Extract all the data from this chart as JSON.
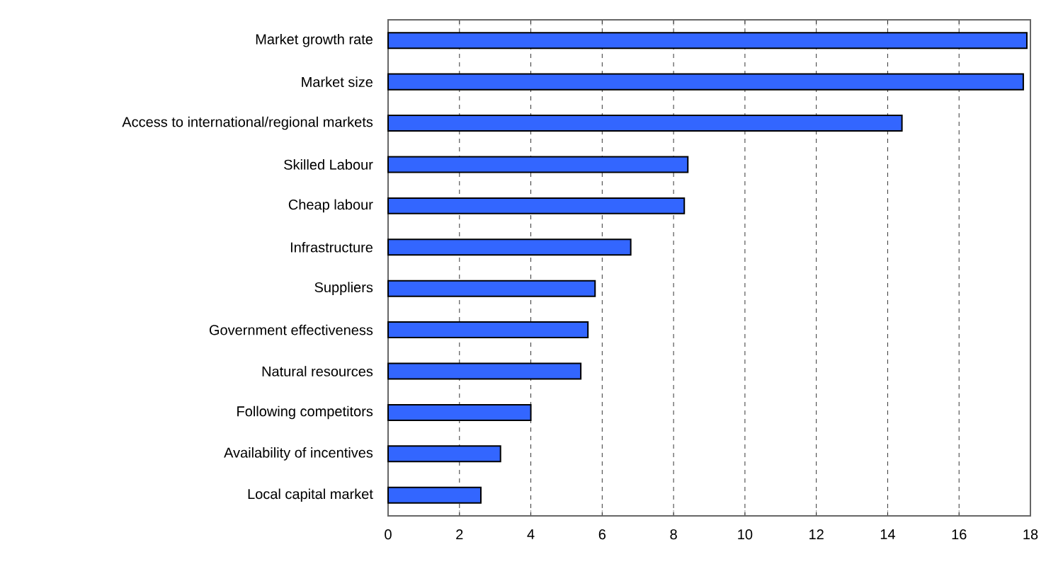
{
  "chart_data": {
    "type": "bar",
    "orientation": "horizontal",
    "categories": [
      "Market growth rate",
      "Market size",
      "Access to international/regional markets",
      "Skilled Labour",
      "Cheap labour",
      "Infrastructure",
      "Suppliers",
      "Government effectiveness",
      "Natural resources",
      "Following competitors",
      "Availability of incentives",
      "Local capital market"
    ],
    "values": [
      17.9,
      17.8,
      14.4,
      8.4,
      8.3,
      6.8,
      5.8,
      5.6,
      5.4,
      4.0,
      3.15,
      2.6
    ],
    "color": "#3366ff",
    "xlim": [
      0,
      18
    ],
    "xticks": [
      0,
      2,
      4,
      6,
      8,
      10,
      12,
      14,
      16,
      18
    ],
    "grid": "x"
  }
}
